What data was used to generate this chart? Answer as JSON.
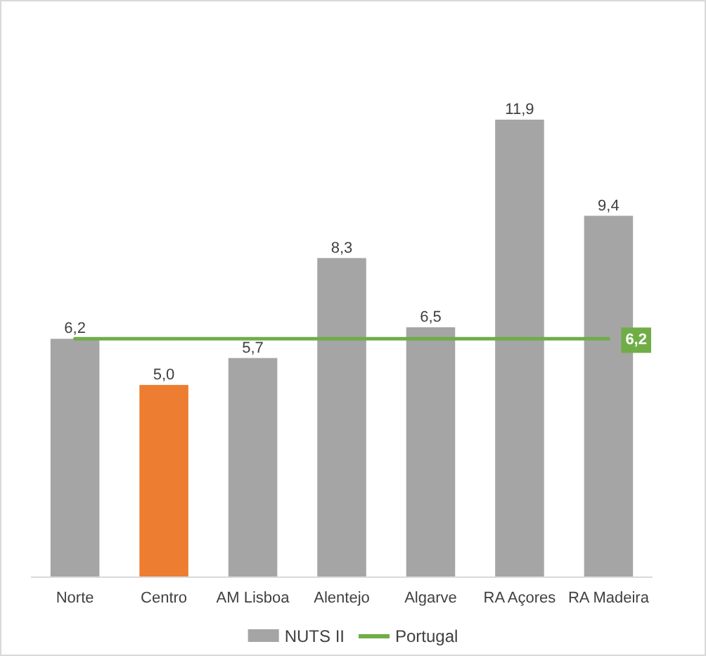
{
  "chart_data": {
    "type": "bar",
    "categories": [
      "Norte",
      "Centro",
      "AM Lisboa",
      "Alentejo",
      "Algarve",
      "RA Açores",
      "RA Madeira"
    ],
    "tick_labels": "x",
    "legend": "bottom",
    "series": [
      {
        "name": "NUTS II",
        "color": "#a5a5a5",
        "colors": [
          "#a5a5a5",
          "#ed7d31",
          "#a5a5a5",
          "#a5a5a5",
          "#a5a5a5",
          "#a5a5a5",
          "#a5a5a5"
        ],
        "values": [
          6.2,
          5.0,
          5.7,
          8.3,
          6.5,
          11.9,
          9.4
        ],
        "value_labels": [
          "6,2",
          "5,0",
          "5,7",
          "8,3",
          "6,5",
          "11,9",
          "9,4"
        ]
      },
      {
        "name": "Portugal",
        "type": "line",
        "color": "#70ad47",
        "values": [
          6.2,
          6.2,
          6.2,
          6.2,
          6.2,
          6.2,
          6.2
        ],
        "value_labels": [
          null,
          null,
          null,
          null,
          null,
          null,
          "6,2"
        ]
      }
    ]
  }
}
